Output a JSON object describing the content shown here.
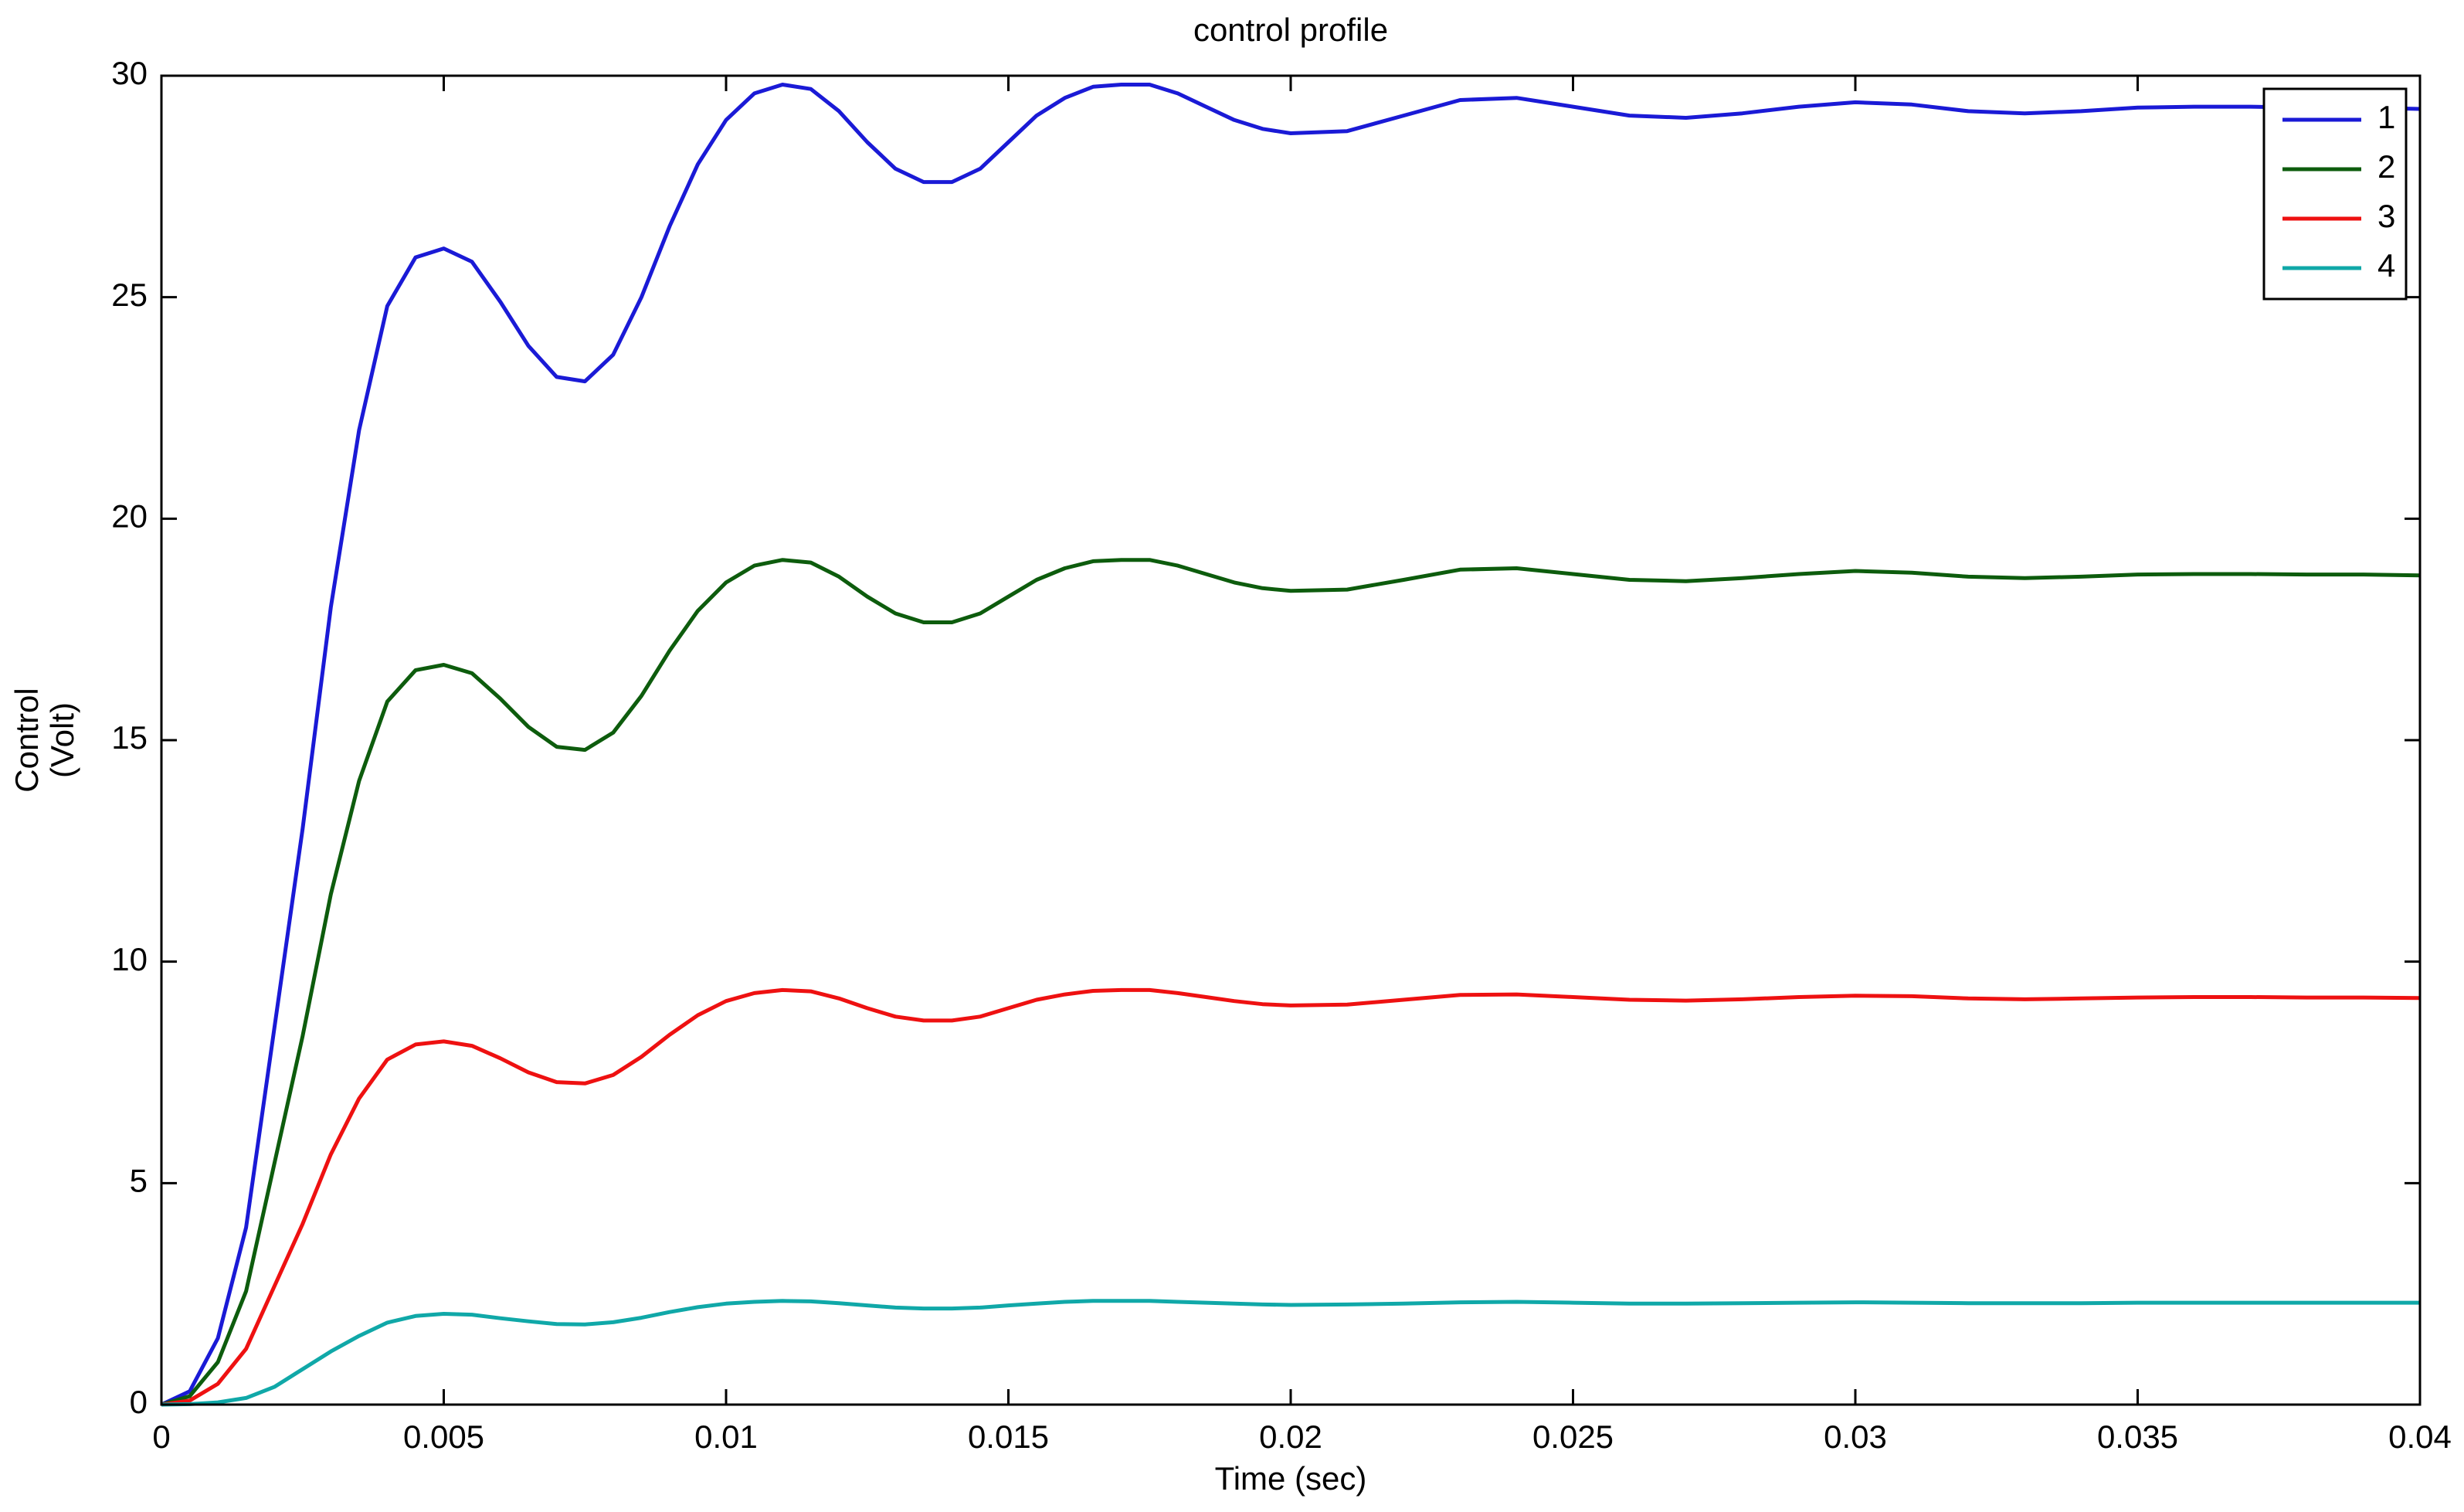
{
  "chart_data": {
    "type": "line",
    "title": "control profile",
    "xlabel": "Time (sec)",
    "ylabel": [
      "Control",
      "(Volt)"
    ],
    "x": [
      0,
      0.0005,
      0.001,
      0.0015,
      0.002,
      0.0025,
      0.003,
      0.0035,
      0.004,
      0.0045,
      0.005,
      0.0055,
      0.006,
      0.0065,
      0.007,
      0.0075,
      0.008,
      0.0085,
      0.009,
      0.0095,
      0.01,
      0.0105,
      0.011,
      0.0115,
      0.012,
      0.0125,
      0.013,
      0.0135,
      0.014,
      0.0145,
      0.015,
      0.0155,
      0.016,
      0.0165,
      0.017,
      0.0175,
      0.018,
      0.0185,
      0.019,
      0.0195,
      0.02,
      0.021,
      0.022,
      0.023,
      0.024,
      0.025,
      0.026,
      0.027,
      0.028,
      0.029,
      0.03,
      0.031,
      0.032,
      0.033,
      0.034,
      0.035,
      0.036,
      0.037,
      0.038,
      0.039,
      0.04
    ],
    "series": [
      {
        "name": "1",
        "color": "#1a1ad6",
        "values": [
          0,
          0.3,
          1.5,
          4,
          8.5,
          13,
          18,
          22,
          24.8,
          25.9,
          26.1,
          25.8,
          24.9,
          23.9,
          23.2,
          23.1,
          23.7,
          25.0,
          26.6,
          28.0,
          29.0,
          29.6,
          29.8,
          29.7,
          29.2,
          28.5,
          27.9,
          27.6,
          27.6,
          27.9,
          28.5,
          29.1,
          29.5,
          29.75,
          29.8,
          29.8,
          29.6,
          29.3,
          29.0,
          28.8,
          28.7,
          28.75,
          29.1,
          29.45,
          29.5,
          29.3,
          29.1,
          29.05,
          29.15,
          29.3,
          29.4,
          29.35,
          29.2,
          29.15,
          29.2,
          29.28,
          29.3,
          29.3,
          29.28,
          29.28,
          29.25
        ]
      },
      {
        "name": "2",
        "color": "#0d5c0d",
        "values": [
          0,
          0.19,
          0.96,
          2.56,
          5.44,
          8.32,
          11.52,
          14.08,
          15.87,
          16.58,
          16.7,
          16.51,
          15.94,
          15.3,
          14.85,
          14.78,
          15.17,
          16.0,
          17.02,
          17.92,
          18.56,
          18.94,
          19.07,
          19.01,
          18.69,
          18.24,
          17.86,
          17.66,
          17.66,
          17.86,
          18.24,
          18.62,
          18.88,
          19.04,
          19.07,
          19.07,
          18.94,
          18.75,
          18.56,
          18.43,
          18.37,
          18.4,
          18.62,
          18.85,
          18.88,
          18.75,
          18.62,
          18.59,
          18.66,
          18.75,
          18.82,
          18.78,
          18.69,
          18.66,
          18.69,
          18.74,
          18.75,
          18.75,
          18.74,
          18.74,
          18.72
        ]
      },
      {
        "name": "3",
        "color": "#ee1111",
        "values": [
          0,
          0.09,
          0.47,
          1.26,
          2.67,
          4.08,
          5.65,
          6.91,
          7.79,
          8.13,
          8.2,
          8.1,
          7.82,
          7.5,
          7.28,
          7.25,
          7.44,
          7.85,
          8.35,
          8.79,
          9.11,
          9.29,
          9.36,
          9.33,
          9.17,
          8.95,
          8.76,
          8.67,
          8.67,
          8.76,
          8.95,
          9.14,
          9.26,
          9.34,
          9.36,
          9.36,
          9.29,
          9.2,
          9.11,
          9.04,
          9.01,
          9.03,
          9.14,
          9.25,
          9.26,
          9.2,
          9.14,
          9.12,
          9.15,
          9.2,
          9.23,
          9.22,
          9.17,
          9.15,
          9.17,
          9.19,
          9.2,
          9.2,
          9.19,
          9.19,
          9.18
        ]
      },
      {
        "name": "4",
        "color": "#10a8a8",
        "values": [
          0,
          0.01,
          0.05,
          0.15,
          0.4,
          0.8,
          1.2,
          1.55,
          1.85,
          2.0,
          2.05,
          2.03,
          1.95,
          1.88,
          1.82,
          1.81,
          1.86,
          1.96,
          2.09,
          2.2,
          2.28,
          2.32,
          2.34,
          2.33,
          2.29,
          2.24,
          2.19,
          2.17,
          2.17,
          2.19,
          2.24,
          2.28,
          2.32,
          2.34,
          2.34,
          2.34,
          2.32,
          2.3,
          2.28,
          2.26,
          2.25,
          2.26,
          2.28,
          2.31,
          2.32,
          2.3,
          2.28,
          2.28,
          2.29,
          2.3,
          2.31,
          2.3,
          2.29,
          2.29,
          2.29,
          2.3,
          2.3,
          2.3,
          2.3,
          2.3,
          2.3
        ]
      }
    ],
    "xlim": [
      0,
      0.04
    ],
    "xticks": [
      0,
      0.005,
      0.01,
      0.015,
      0.02,
      0.025,
      0.03,
      0.035,
      0.04
    ],
    "ylim": [
      0,
      30
    ],
    "yticks": [
      0,
      5,
      10,
      15,
      20,
      25,
      30
    ],
    "grid": false,
    "legend": "northeast"
  }
}
